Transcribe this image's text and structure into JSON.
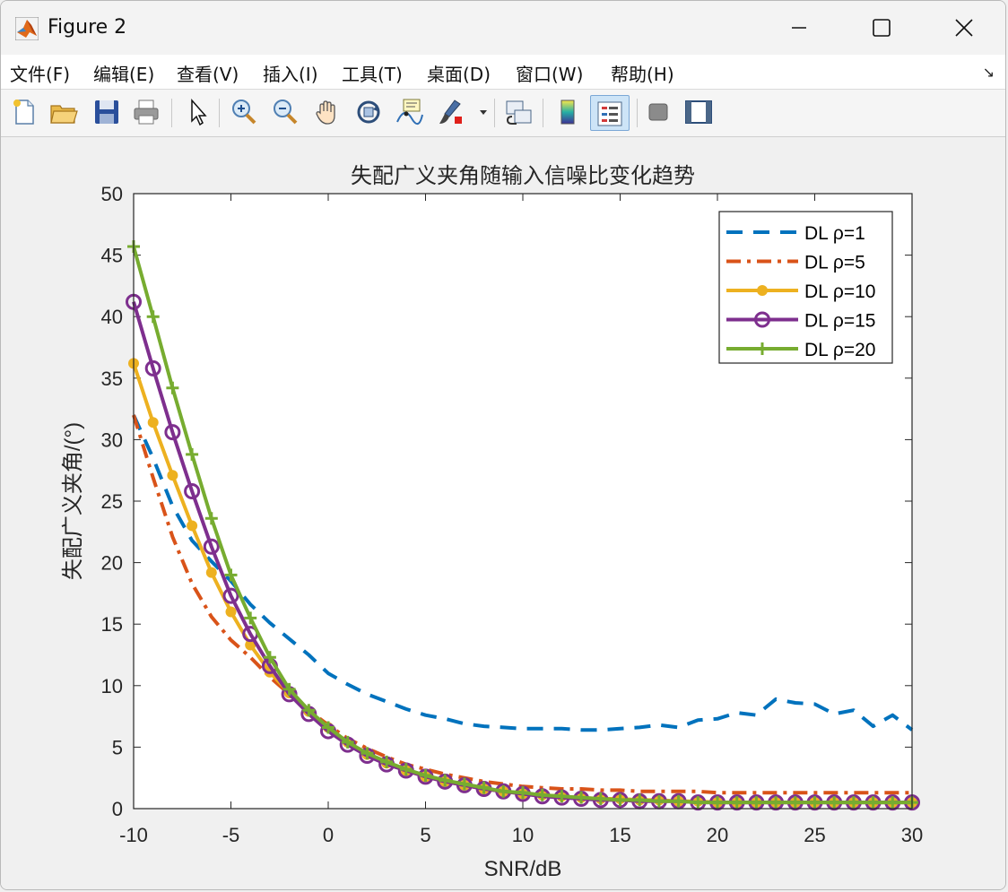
{
  "window": {
    "title": "Figure 2",
    "controls": [
      "minimize",
      "maximize",
      "close"
    ]
  },
  "menu": {
    "items": [
      "文件(F)",
      "编辑(E)",
      "查看(V)",
      "插入(I)",
      "工具(T)",
      "桌面(D)",
      "窗口(W)",
      "帮助(H)"
    ],
    "overflow_icon": "dock-arrow-icon"
  },
  "toolbar": {
    "buttons": [
      {
        "icon": "new-figure-icon"
      },
      {
        "icon": "open-file-icon"
      },
      {
        "icon": "save-icon"
      },
      {
        "icon": "print-icon"
      },
      {
        "icon": "select-pointer-icon"
      },
      {
        "icon": "zoom-in-icon"
      },
      {
        "icon": "zoom-out-icon"
      },
      {
        "icon": "pan-hand-icon"
      },
      {
        "icon": "rotate-3d-icon"
      },
      {
        "icon": "data-cursor-icon"
      },
      {
        "icon": "brush-icon"
      },
      {
        "icon": "link-plot-icon"
      },
      {
        "icon": "colorbar-icon"
      },
      {
        "icon": "legend-icon",
        "active": true
      },
      {
        "icon": "hide-plot-tools-icon"
      },
      {
        "icon": "show-plot-tools-icon"
      }
    ]
  },
  "chart_data": {
    "type": "line",
    "title": "失配广义夹角随输入信噪比变化趋势",
    "xlabel": "SNR/dB",
    "ylabel": "失配广义夹角/(°)",
    "xlim": [
      -10,
      30
    ],
    "ylim": [
      0,
      50
    ],
    "xticks": [
      -10,
      -5,
      0,
      5,
      10,
      15,
      20,
      25,
      30
    ],
    "yticks": [
      0,
      5,
      10,
      15,
      20,
      25,
      30,
      35,
      40,
      45,
      50
    ],
    "xtick_labels": [
      "-10",
      "-5",
      "0",
      "5",
      "10",
      "15",
      "20",
      "25",
      "30"
    ],
    "ytick_labels": [
      "0",
      "5",
      "10",
      "15",
      "20",
      "25",
      "30",
      "35",
      "40",
      "45",
      "50"
    ],
    "grid": false,
    "legend_position": "top-right",
    "x": [
      -10,
      -9,
      -8,
      -7,
      -6,
      -5,
      -4,
      -3,
      -2,
      -1,
      0,
      1,
      2,
      3,
      4,
      5,
      6,
      7,
      8,
      9,
      10,
      11,
      12,
      13,
      14,
      15,
      16,
      17,
      18,
      19,
      20,
      21,
      22,
      23,
      24,
      25,
      26,
      27,
      28,
      29,
      30
    ],
    "series": [
      {
        "name": "DL ρ=1",
        "color": "#0072BD",
        "style": "dashed",
        "marker": "none",
        "values": [
          32,
          28.5,
          24.6,
          21.8,
          20.1,
          18.5,
          16.6,
          15.1,
          13.8,
          12.5,
          11.0,
          10.1,
          9.3,
          8.7,
          8.1,
          7.6,
          7.3,
          6.9,
          6.7,
          6.6,
          6.5,
          6.5,
          6.5,
          6.4,
          6.4,
          6.5,
          6.6,
          6.8,
          6.6,
          7.2,
          7.3,
          7.8,
          7.6,
          8.9,
          8.6,
          8.5,
          7.7,
          8.0,
          6.7,
          7.6,
          6.4
        ]
      },
      {
        "name": "DL ρ=5",
        "color": "#D95319",
        "style": "dashdot",
        "marker": "none",
        "values": [
          32,
          26.9,
          22.1,
          18.3,
          15.6,
          13.7,
          12.3,
          10.7,
          9.3,
          8.0,
          6.8,
          5.7,
          4.9,
          4.2,
          3.6,
          3.2,
          2.8,
          2.5,
          2.2,
          2.0,
          1.8,
          1.7,
          1.6,
          1.6,
          1.5,
          1.5,
          1.4,
          1.4,
          1.4,
          1.4,
          1.3,
          1.3,
          1.3,
          1.3,
          1.3,
          1.3,
          1.3,
          1.3,
          1.3,
          1.3,
          1.3
        ]
      },
      {
        "name": "DL ρ=10",
        "color": "#EDB120",
        "style": "solid",
        "marker": "dot",
        "values": [
          36.2,
          31.4,
          27.1,
          23.0,
          19.2,
          16.0,
          13.3,
          11.1,
          9.4,
          7.9,
          6.6,
          5.4,
          4.4,
          3.7,
          3.1,
          2.6,
          2.2,
          1.9,
          1.6,
          1.4,
          1.2,
          1.1,
          1.0,
          0.9,
          0.8,
          0.8,
          0.7,
          0.7,
          0.6,
          0.6,
          0.5,
          0.5,
          0.5,
          0.5,
          0.5,
          0.5,
          0.5,
          0.5,
          0.5,
          0.5,
          0.5
        ]
      },
      {
        "name": "DL ρ=15",
        "color": "#7E2F8E",
        "style": "solid",
        "marker": "circle",
        "values": [
          41.2,
          35.8,
          30.6,
          25.8,
          21.3,
          17.3,
          14.2,
          11.6,
          9.3,
          7.7,
          6.3,
          5.2,
          4.3,
          3.6,
          3.1,
          2.6,
          2.2,
          1.9,
          1.6,
          1.4,
          1.2,
          1.0,
          0.9,
          0.8,
          0.7,
          0.7,
          0.6,
          0.6,
          0.6,
          0.5,
          0.5,
          0.5,
          0.5,
          0.5,
          0.5,
          0.5,
          0.5,
          0.5,
          0.5,
          0.5,
          0.5
        ]
      },
      {
        "name": "DL ρ=20",
        "color": "#77AC30",
        "style": "solid",
        "marker": "plus",
        "values": [
          45.7,
          40.0,
          34.2,
          28.8,
          23.6,
          19.0,
          15.5,
          12.3,
          9.7,
          8.0,
          6.6,
          5.4,
          4.5,
          3.8,
          3.2,
          2.7,
          2.3,
          2.0,
          1.7,
          1.4,
          1.3,
          1.1,
          1.0,
          0.9,
          0.8,
          0.7,
          0.7,
          0.6,
          0.6,
          0.5,
          0.5,
          0.5,
          0.5,
          0.5,
          0.5,
          0.5,
          0.5,
          0.5,
          0.5,
          0.5,
          0.5
        ]
      }
    ]
  }
}
